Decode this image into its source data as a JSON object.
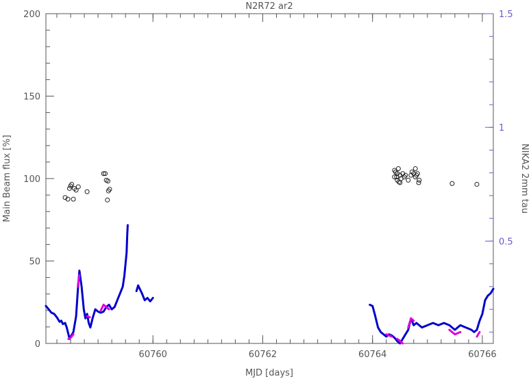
{
  "chart_data": {
    "type": "scatter",
    "title": "N2R72  ar2",
    "xlabel": "MJD [days]",
    "ylabel": "Main Beam flux [%]",
    "y2label": "NIKA2 2mm tau",
    "xlim": [
      60758.05,
      60766.2
    ],
    "ylim": [
      0,
      200
    ],
    "y2lim": [
      0.05,
      1.5
    ],
    "xticks": [
      60760,
      60762,
      60764,
      60766
    ],
    "xtick_labels": [
      "60760",
      "60762",
      "60764",
      "60766"
    ],
    "yticks": [
      0,
      50,
      100,
      150,
      200
    ],
    "ytick_labels": [
      "0",
      "50",
      "100",
      "150",
      "200"
    ],
    "y2ticks": [
      0.5,
      1,
      1.5
    ],
    "y2tick_labels": [
      "0.5",
      "1",
      "1.5"
    ],
    "colors": {
      "axis": "#555555",
      "right_axis": "#6a5acd",
      "flux_points": "#222222",
      "tau_primary": "#0000cc",
      "tau_secondary": "#dd00dd"
    },
    "series": [
      {
        "type": "scatter",
        "axis": "left",
        "color": "#222222",
        "points": [
          [
            60758.4,
            88.5
          ],
          [
            60758.45,
            87.5
          ],
          [
            60758.48,
            94
          ],
          [
            60758.5,
            95.5
          ],
          [
            60758.52,
            96.5
          ],
          [
            60758.55,
            87.5
          ],
          [
            60758.57,
            94
          ],
          [
            60758.6,
            93
          ],
          [
            60758.64,
            95
          ],
          [
            60758.8,
            92
          ],
          [
            60759.1,
            103
          ],
          [
            60759.13,
            103
          ],
          [
            60759.15,
            99
          ],
          [
            60759.18,
            98.5
          ],
          [
            60759.17,
            87
          ],
          [
            60759.19,
            92.5
          ],
          [
            60759.21,
            93.5
          ],
          [
            60764.4,
            105
          ],
          [
            60764.42,
            104
          ],
          [
            60764.44,
            101
          ],
          [
            60764.45,
            103
          ],
          [
            60764.47,
            106
          ],
          [
            60764.5,
            102
          ],
          [
            60764.52,
            100
          ],
          [
            60764.55,
            103
          ],
          [
            60764.58,
            101
          ],
          [
            60764.45,
            99
          ],
          [
            60764.48,
            98
          ],
          [
            60764.6,
            102
          ],
          [
            60764.65,
            99
          ],
          [
            60764.7,
            102
          ],
          [
            60764.72,
            104
          ],
          [
            60764.75,
            103
          ],
          [
            60764.78,
            106
          ],
          [
            60764.8,
            102
          ],
          [
            60764.82,
            103
          ],
          [
            60764.85,
            99
          ],
          [
            60764.84,
            97.5
          ],
          [
            60764.78,
            101
          ],
          [
            60764.5,
            97.5
          ],
          [
            60764.4,
            101
          ],
          [
            60765.45,
            97
          ],
          [
            60765.9,
            96.5
          ]
        ]
      },
      {
        "type": "line",
        "axis": "right",
        "color": "#0000cc",
        "segments": [
          [
            [
              60758.05,
              0.215
            ],
            [
              60758.1,
              0.2
            ],
            [
              60758.15,
              0.185
            ],
            [
              60758.2,
              0.18
            ],
            [
              60758.25,
              0.165
            ],
            [
              60758.3,
              0.145
            ],
            [
              60758.33,
              0.15
            ],
            [
              60758.36,
              0.135
            ],
            [
              60758.4,
              0.14
            ],
            [
              60758.43,
              0.12
            ],
            [
              60758.46,
              0.09
            ],
            [
              60758.48,
              0.07
            ],
            [
              60758.5,
              0.08
            ],
            [
              60758.55,
              0.1
            ],
            [
              60758.6,
              0.17
            ],
            [
              60758.63,
              0.28
            ],
            [
              60758.66,
              0.37
            ],
            [
              60758.7,
              0.3
            ],
            [
              60758.74,
              0.2
            ],
            [
              60758.77,
              0.16
            ],
            [
              60758.8,
              0.18
            ],
            [
              60758.83,
              0.14
            ],
            [
              60758.86,
              0.12
            ],
            [
              60758.9,
              0.16
            ],
            [
              60758.95,
              0.2
            ],
            [
              60759.0,
              0.19
            ],
            [
              60759.05,
              0.185
            ],
            [
              60759.1,
              0.19
            ],
            [
              60759.15,
              0.21
            ],
            [
              60759.2,
              0.22
            ],
            [
              60759.25,
              0.2
            ],
            [
              60759.3,
              0.21
            ],
            [
              60759.35,
              0.24
            ],
            [
              60759.4,
              0.27
            ],
            [
              60759.45,
              0.3
            ],
            [
              60759.48,
              0.35
            ],
            [
              60759.5,
              0.4
            ],
            [
              60759.52,
              0.45
            ],
            [
              60759.53,
              0.52
            ],
            [
              60759.54,
              0.57
            ]
          ],
          [
            [
              60759.7,
              0.28
            ],
            [
              60759.73,
              0.305
            ],
            [
              60759.76,
              0.29
            ],
            [
              60759.8,
              0.27
            ],
            [
              60759.85,
              0.24
            ],
            [
              60759.9,
              0.25
            ],
            [
              60759.95,
              0.235
            ],
            [
              60760.0,
              0.25
            ]
          ],
          [
            [
              60763.95,
              0.22
            ],
            [
              60764.0,
              0.215
            ],
            [
              60764.05,
              0.17
            ],
            [
              60764.1,
              0.12
            ],
            [
              60764.15,
              0.1
            ],
            [
              60764.2,
              0.09
            ],
            [
              60764.25,
              0.08
            ],
            [
              60764.3,
              0.09
            ],
            [
              60764.35,
              0.085
            ],
            [
              60764.4,
              0.075
            ],
            [
              60764.45,
              0.06
            ],
            [
              60764.5,
              0.05
            ],
            [
              60764.55,
              0.07
            ],
            [
              60764.6,
              0.09
            ],
            [
              60764.65,
              0.11
            ],
            [
              60764.7,
              0.16
            ],
            [
              60764.75,
              0.13
            ],
            [
              60764.8,
              0.14
            ],
            [
              60764.85,
              0.13
            ],
            [
              60764.9,
              0.12
            ],
            [
              60765.0,
              0.13
            ],
            [
              60765.1,
              0.14
            ],
            [
              60765.2,
              0.13
            ],
            [
              60765.3,
              0.14
            ],
            [
              60765.4,
              0.13
            ],
            [
              60765.5,
              0.11
            ],
            [
              60765.55,
              0.12
            ],
            [
              60765.6,
              0.13
            ],
            [
              60765.7,
              0.12
            ],
            [
              60765.8,
              0.11
            ],
            [
              60765.85,
              0.1
            ],
            [
              60765.9,
              0.11
            ],
            [
              60765.95,
              0.15
            ],
            [
              60766.0,
              0.18
            ],
            [
              60766.05,
              0.24
            ],
            [
              60766.1,
              0.26
            ],
            [
              60766.15,
              0.27
            ],
            [
              60766.2,
              0.29
            ]
          ]
        ]
      },
      {
        "type": "line",
        "axis": "right",
        "color": "#dd00dd",
        "segments": [
          [
            [
              60758.46,
              0.07
            ],
            [
              60758.5,
              0.075
            ],
            [
              60758.55,
              0.09
            ]
          ],
          [
            [
              60758.63,
              0.3
            ],
            [
              60758.66,
              0.35
            ]
          ],
          [
            [
              60758.8,
              0.17
            ],
            [
              60758.85,
              0.165
            ]
          ],
          [
            [
              60759.05,
              0.195
            ],
            [
              60759.1,
              0.22
            ],
            [
              60759.15,
              0.21
            ],
            [
              60759.2,
              0.2
            ]
          ],
          [
            [
              60764.25,
              0.09
            ],
            [
              60764.35,
              0.08
            ]
          ],
          [
            [
              60764.45,
              0.07
            ],
            [
              60764.5,
              0.06
            ],
            [
              60764.55,
              0.05
            ]
          ],
          [
            [
              60764.65,
              0.12
            ],
            [
              60764.7,
              0.16
            ],
            [
              60764.75,
              0.15
            ]
          ],
          [
            [
              60765.4,
              0.11
            ],
            [
              60765.5,
              0.09
            ],
            [
              60765.6,
              0.1
            ]
          ],
          [
            [
              60765.9,
              0.08
            ],
            [
              60765.95,
              0.1
            ]
          ]
        ]
      }
    ]
  }
}
